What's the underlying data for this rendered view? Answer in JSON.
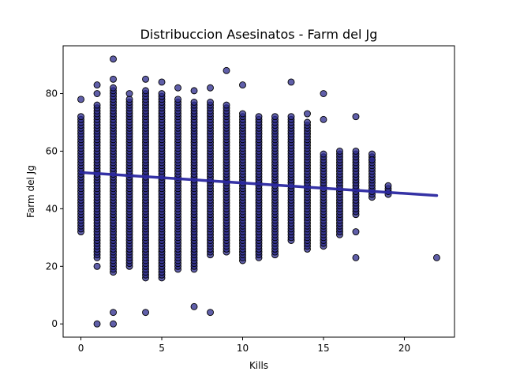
{
  "chart_data": {
    "type": "scatter",
    "title": "Distribuccion Asesinatos - Farm del Jg",
    "xlabel": "Kills",
    "ylabel": "Farm del Jg",
    "xlim": [
      -1.1,
      23.1
    ],
    "ylim": [
      -4.6,
      96.6
    ],
    "xticks": [
      0,
      5,
      10,
      15,
      20
    ],
    "yticks": [
      0,
      20,
      40,
      60,
      80
    ],
    "grid": false,
    "legend": "none",
    "point_color": "#2b2a8c",
    "point_edge_color": "#000000",
    "point_opacity": 0.75,
    "trend_color": "#2a27a0",
    "trend_line": {
      "x": [
        0,
        22
      ],
      "y": [
        52.6,
        44.6
      ]
    },
    "columns": [
      {
        "x": 0,
        "min": 32,
        "max": 72,
        "extra": [
          78
        ]
      },
      {
        "x": 1,
        "min": 23,
        "max": 76,
        "extra": [
          0,
          20,
          80,
          83
        ]
      },
      {
        "x": 2,
        "min": 18,
        "max": 82,
        "extra": [
          0,
          4,
          85,
          92
        ]
      },
      {
        "x": 3,
        "min": 20,
        "max": 78,
        "extra": [
          80
        ]
      },
      {
        "x": 4,
        "min": 16,
        "max": 81,
        "extra": [
          4,
          85
        ]
      },
      {
        "x": 5,
        "min": 16,
        "max": 80,
        "extra": [
          84
        ]
      },
      {
        "x": 6,
        "min": 19,
        "max": 78,
        "extra": [
          82
        ]
      },
      {
        "x": 7,
        "min": 19,
        "max": 77,
        "extra": [
          6,
          81
        ]
      },
      {
        "x": 8,
        "min": 24,
        "max": 77,
        "extra": [
          4,
          82
        ]
      },
      {
        "x": 9,
        "min": 25,
        "max": 76,
        "extra": [
          88
        ]
      },
      {
        "x": 10,
        "min": 22,
        "max": 73,
        "extra": [
          83
        ]
      },
      {
        "x": 11,
        "min": 23,
        "max": 72,
        "extra": []
      },
      {
        "x": 12,
        "min": 24,
        "max": 72,
        "extra": []
      },
      {
        "x": 13,
        "min": 29,
        "max": 72,
        "extra": [
          84
        ]
      },
      {
        "x": 14,
        "min": 26,
        "max": 70,
        "extra": [
          73
        ]
      },
      {
        "x": 15,
        "min": 27,
        "max": 59,
        "extra": [
          71,
          80
        ]
      },
      {
        "x": 16,
        "min": 31,
        "max": 60,
        "extra": []
      },
      {
        "x": 17,
        "min": 38,
        "max": 60,
        "extra": [
          23,
          32,
          72
        ]
      },
      {
        "x": 18,
        "min": 44,
        "max": 59,
        "extra": [
          57
        ]
      },
      {
        "x": 19,
        "min": 45,
        "max": 48,
        "extra": []
      },
      {
        "x": 22,
        "min": 23,
        "max": 23,
        "extra": []
      }
    ]
  }
}
